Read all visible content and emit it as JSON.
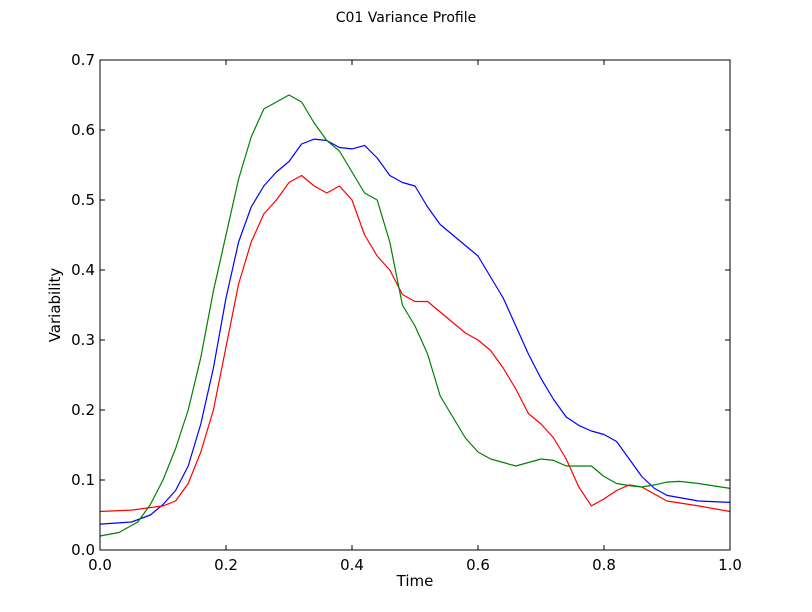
{
  "chart_data": {
    "type": "line",
    "title": "C01 Variance Profile",
    "xlabel": "Time",
    "ylabel": "Variability",
    "xlim": [
      0.0,
      1.0
    ],
    "ylim": [
      0.0,
      0.7
    ],
    "xticks": [
      "0.0",
      "0.2",
      "0.4",
      "0.6",
      "0.8",
      "1.0"
    ],
    "yticks": [
      "0.0",
      "0.1",
      "0.2",
      "0.3",
      "0.4",
      "0.5",
      "0.6",
      "0.7"
    ],
    "grid": false,
    "legend": "none",
    "series": [
      {
        "color": "#0000ff",
        "x": [
          0.0,
          0.05,
          0.08,
          0.1,
          0.12,
          0.14,
          0.16,
          0.18,
          0.2,
          0.22,
          0.24,
          0.26,
          0.28,
          0.3,
          0.32,
          0.34,
          0.36,
          0.38,
          0.4,
          0.42,
          0.44,
          0.46,
          0.48,
          0.5,
          0.52,
          0.54,
          0.56,
          0.58,
          0.6,
          0.62,
          0.64,
          0.66,
          0.68,
          0.7,
          0.72,
          0.74,
          0.76,
          0.78,
          0.8,
          0.82,
          0.84,
          0.86,
          0.88,
          0.9,
          0.95,
          1.0
        ],
        "y": [
          0.037,
          0.04,
          0.05,
          0.065,
          0.085,
          0.12,
          0.18,
          0.26,
          0.36,
          0.44,
          0.49,
          0.52,
          0.54,
          0.555,
          0.58,
          0.587,
          0.585,
          0.575,
          0.573,
          0.578,
          0.56,
          0.535,
          0.525,
          0.52,
          0.49,
          0.465,
          0.45,
          0.435,
          0.42,
          0.39,
          0.36,
          0.32,
          0.28,
          0.245,
          0.215,
          0.19,
          0.178,
          0.17,
          0.165,
          0.155,
          0.13,
          0.105,
          0.088,
          0.078,
          0.07,
          0.068
        ]
      },
      {
        "color": "#ff0000",
        "x": [
          0.0,
          0.05,
          0.1,
          0.12,
          0.14,
          0.16,
          0.18,
          0.2,
          0.22,
          0.24,
          0.26,
          0.28,
          0.3,
          0.32,
          0.34,
          0.36,
          0.38,
          0.4,
          0.42,
          0.44,
          0.46,
          0.48,
          0.5,
          0.52,
          0.54,
          0.56,
          0.58,
          0.6,
          0.62,
          0.64,
          0.66,
          0.68,
          0.7,
          0.72,
          0.74,
          0.76,
          0.78,
          0.8,
          0.82,
          0.84,
          0.86,
          0.88,
          0.9,
          0.95,
          1.0
        ],
        "y": [
          0.055,
          0.057,
          0.063,
          0.07,
          0.095,
          0.14,
          0.2,
          0.29,
          0.38,
          0.44,
          0.48,
          0.5,
          0.525,
          0.535,
          0.52,
          0.51,
          0.52,
          0.5,
          0.45,
          0.42,
          0.4,
          0.365,
          0.355,
          0.355,
          0.34,
          0.325,
          0.31,
          0.3,
          0.285,
          0.26,
          0.23,
          0.195,
          0.18,
          0.16,
          0.13,
          0.09,
          0.063,
          0.073,
          0.085,
          0.093,
          0.09,
          0.08,
          0.07,
          0.063,
          0.055
        ]
      },
      {
        "color": "#008000",
        "x": [
          0.0,
          0.03,
          0.06,
          0.08,
          0.1,
          0.12,
          0.14,
          0.16,
          0.18,
          0.2,
          0.22,
          0.24,
          0.26,
          0.28,
          0.3,
          0.32,
          0.34,
          0.36,
          0.38,
          0.4,
          0.42,
          0.44,
          0.46,
          0.48,
          0.5,
          0.52,
          0.54,
          0.56,
          0.58,
          0.6,
          0.62,
          0.64,
          0.66,
          0.68,
          0.7,
          0.72,
          0.74,
          0.76,
          0.78,
          0.8,
          0.82,
          0.84,
          0.86,
          0.88,
          0.9,
          0.92,
          0.95,
          1.0
        ],
        "y": [
          0.02,
          0.025,
          0.04,
          0.065,
          0.1,
          0.145,
          0.2,
          0.275,
          0.37,
          0.45,
          0.53,
          0.59,
          0.63,
          0.64,
          0.65,
          0.64,
          0.61,
          0.585,
          0.57,
          0.54,
          0.51,
          0.5,
          0.44,
          0.35,
          0.32,
          0.28,
          0.22,
          0.19,
          0.16,
          0.14,
          0.13,
          0.125,
          0.12,
          0.125,
          0.13,
          0.128,
          0.12,
          0.12,
          0.12,
          0.105,
          0.095,
          0.092,
          0.09,
          0.093,
          0.097,
          0.098,
          0.095,
          0.088
        ]
      }
    ]
  }
}
